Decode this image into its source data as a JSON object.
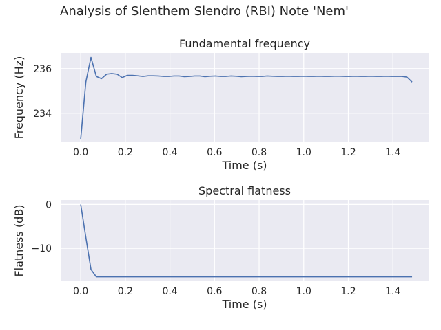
{
  "suptitle": "Analysis of Slenthem Slendro (RBI) Note 'Nem'",
  "colors": {
    "plot_bg": "#eaeaf2",
    "grid": "#ffffff",
    "line": "#4c72b0",
    "text": "#262626"
  },
  "chart_data": [
    {
      "type": "line",
      "title": "Fundamental frequency",
      "xlabel": "Time (s)",
      "ylabel": "Frequency (Hz)",
      "xlim": [
        -0.09,
        1.56
      ],
      "ylim": [
        232.7,
        236.7
      ],
      "xticks": [
        0.0,
        0.2,
        0.4,
        0.6,
        0.8,
        1.0,
        1.2,
        1.4
      ],
      "xtick_labels": [
        "0.0",
        "0.2",
        "0.4",
        "0.6",
        "0.8",
        "1.0",
        "1.2",
        "1.4"
      ],
      "yticks": [
        234,
        236
      ],
      "ytick_labels": [
        "234",
        "236"
      ],
      "grid": true,
      "series": [
        {
          "x": [
            0.0,
            0.023,
            0.046,
            0.07,
            0.093,
            0.116,
            0.139,
            0.163,
            0.186,
            0.209,
            0.232,
            0.255,
            0.279,
            0.302,
            0.325,
            0.348,
            0.372,
            0.395,
            0.418,
            0.441,
            0.465,
            0.488,
            0.511,
            0.534,
            0.557,
            0.581,
            0.604,
            0.627,
            0.65,
            0.674,
            0.697,
            0.72,
            0.743,
            0.766,
            0.79,
            0.813,
            0.836,
            0.859,
            0.883,
            0.906,
            0.929,
            0.952,
            0.976,
            0.999,
            1.022,
            1.045,
            1.068,
            1.092,
            1.115,
            1.138,
            1.161,
            1.185,
            1.208,
            1.231,
            1.254,
            1.277,
            1.301,
            1.324,
            1.347,
            1.37,
            1.394,
            1.417,
            1.44,
            1.463,
            1.486
          ],
          "y": [
            232.85,
            235.4,
            236.5,
            235.65,
            235.55,
            235.75,
            235.78,
            235.75,
            235.6,
            235.7,
            235.7,
            235.68,
            235.65,
            235.68,
            235.68,
            235.67,
            235.65,
            235.65,
            235.67,
            235.67,
            235.64,
            235.65,
            235.67,
            235.67,
            235.64,
            235.66,
            235.67,
            235.65,
            235.65,
            235.67,
            235.66,
            235.64,
            235.65,
            235.66,
            235.65,
            235.65,
            235.67,
            235.66,
            235.65,
            235.65,
            235.66,
            235.65,
            235.65,
            235.66,
            235.65,
            235.65,
            235.66,
            235.65,
            235.65,
            235.66,
            235.66,
            235.65,
            235.65,
            235.66,
            235.65,
            235.65,
            235.66,
            235.65,
            235.65,
            235.66,
            235.65,
            235.65,
            235.65,
            235.62,
            235.4
          ]
        }
      ]
    },
    {
      "type": "line",
      "title": "Spectral flatness",
      "xlabel": "Time (s)",
      "ylabel": "Flatness (dB)",
      "xlim": [
        -0.09,
        1.56
      ],
      "ylim": [
        -17.5,
        1.0
      ],
      "xticks": [
        0.0,
        0.2,
        0.4,
        0.6,
        0.8,
        1.0,
        1.2,
        1.4
      ],
      "xtick_labels": [
        "0.0",
        "0.2",
        "0.4",
        "0.6",
        "0.8",
        "1.0",
        "1.2",
        "1.4"
      ],
      "yticks": [
        0,
        -10
      ],
      "ytick_labels": [
        "0",
        "−10"
      ],
      "grid": true,
      "series": [
        {
          "x": [
            0.0,
            0.023,
            0.046,
            0.07,
            0.1,
            0.2,
            0.4,
            0.6,
            0.8,
            1.0,
            1.2,
            1.4,
            1.486
          ],
          "y": [
            0.0,
            -7.5,
            -14.8,
            -16.5,
            -16.5,
            -16.5,
            -16.5,
            -16.5,
            -16.5,
            -16.5,
            -16.5,
            -16.5,
            -16.5
          ]
        }
      ]
    }
  ]
}
